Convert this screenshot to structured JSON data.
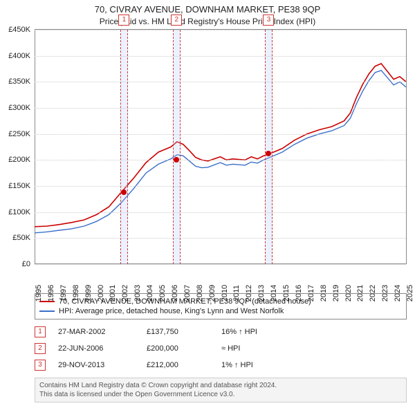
{
  "title": "70, CIVRAY AVENUE, DOWNHAM MARKET, PE38 9QP",
  "subtitle": "Price paid vs. HM Land Registry's House Price Index (HPI)",
  "chart": {
    "type": "line",
    "background_color": "#ffffff",
    "grid_color": "#cccccc",
    "x": {
      "min": 1995,
      "max": 2025,
      "ticks": [
        1995,
        1996,
        1997,
        1998,
        1999,
        2000,
        2001,
        2002,
        2003,
        2004,
        2005,
        2006,
        2007,
        2008,
        2009,
        2010,
        2011,
        2012,
        2013,
        2014,
        2015,
        2016,
        2017,
        2018,
        2019,
        2020,
        2021,
        2022,
        2023,
        2024,
        2025
      ]
    },
    "y": {
      "min": 0,
      "max": 450000,
      "ticks": [
        0,
        50000,
        100000,
        150000,
        200000,
        250000,
        300000,
        350000,
        400000,
        450000
      ],
      "tick_labels": [
        "£0",
        "£50K",
        "£100K",
        "£150K",
        "£200K",
        "£250K",
        "£300K",
        "£350K",
        "£400K",
        "£450K"
      ]
    },
    "series": [
      {
        "name": "price_paid",
        "color": "#cc0000",
        "width": 1.6,
        "points": [
          [
            1995,
            72000
          ],
          [
            1996,
            73000
          ],
          [
            1997,
            76000
          ],
          [
            1998,
            80000
          ],
          [
            1999,
            85000
          ],
          [
            2000,
            95000
          ],
          [
            2001,
            110000
          ],
          [
            2002,
            138000
          ],
          [
            2003,
            165000
          ],
          [
            2004,
            195000
          ],
          [
            2005,
            215000
          ],
          [
            2006,
            225000
          ],
          [
            2006.5,
            235000
          ],
          [
            2007,
            230000
          ],
          [
            2007.5,
            218000
          ],
          [
            2008,
            205000
          ],
          [
            2008.5,
            200000
          ],
          [
            2009,
            198000
          ],
          [
            2010,
            206000
          ],
          [
            2010.5,
            200000
          ],
          [
            2011,
            202000
          ],
          [
            2012,
            200000
          ],
          [
            2012.5,
            206000
          ],
          [
            2013,
            202000
          ],
          [
            2013.5,
            208000
          ],
          [
            2014,
            212000
          ],
          [
            2015,
            222000
          ],
          [
            2016,
            238000
          ],
          [
            2017,
            250000
          ],
          [
            2018,
            258000
          ],
          [
            2019,
            264000
          ],
          [
            2020,
            275000
          ],
          [
            2020.5,
            290000
          ],
          [
            2021,
            320000
          ],
          [
            2021.5,
            345000
          ],
          [
            2022,
            365000
          ],
          [
            2022.5,
            380000
          ],
          [
            2023,
            385000
          ],
          [
            2023.5,
            370000
          ],
          [
            2024,
            355000
          ],
          [
            2024.5,
            360000
          ],
          [
            2025,
            350000
          ]
        ]
      },
      {
        "name": "hpi",
        "color": "#3a6fc9",
        "width": 1.4,
        "points": [
          [
            1995,
            60000
          ],
          [
            1996,
            62000
          ],
          [
            1997,
            65000
          ],
          [
            1998,
            68000
          ],
          [
            1999,
            73000
          ],
          [
            2000,
            82000
          ],
          [
            2001,
            95000
          ],
          [
            2002,
            118000
          ],
          [
            2003,
            145000
          ],
          [
            2004,
            175000
          ],
          [
            2005,
            192000
          ],
          [
            2006,
            202000
          ],
          [
            2006.5,
            210000
          ],
          [
            2007,
            208000
          ],
          [
            2007.5,
            198000
          ],
          [
            2008,
            188000
          ],
          [
            2008.5,
            185000
          ],
          [
            2009,
            186000
          ],
          [
            2010,
            195000
          ],
          [
            2010.5,
            190000
          ],
          [
            2011,
            192000
          ],
          [
            2012,
            190000
          ],
          [
            2012.5,
            196000
          ],
          [
            2013,
            194000
          ],
          [
            2013.5,
            200000
          ],
          [
            2014,
            205000
          ],
          [
            2015,
            215000
          ],
          [
            2016,
            230000
          ],
          [
            2017,
            242000
          ],
          [
            2018,
            250000
          ],
          [
            2019,
            256000
          ],
          [
            2020,
            266000
          ],
          [
            2020.5,
            280000
          ],
          [
            2021,
            308000
          ],
          [
            2021.5,
            332000
          ],
          [
            2022,
            352000
          ],
          [
            2022.5,
            368000
          ],
          [
            2023,
            372000
          ],
          [
            2023.5,
            358000
          ],
          [
            2024,
            344000
          ],
          [
            2024.5,
            350000
          ],
          [
            2025,
            340000
          ]
        ]
      }
    ],
    "sale_markers": [
      {
        "n": "1",
        "x": 2002.23,
        "band_width": 0.6,
        "dot_y": 137750
      },
      {
        "n": "2",
        "x": 2006.47,
        "band_width": 0.6,
        "dot_y": 200000
      },
      {
        "n": "3",
        "x": 2013.91,
        "band_width": 0.6,
        "dot_y": 212000
      }
    ]
  },
  "legend": {
    "items": [
      {
        "color": "#cc0000",
        "label": "70, CIVRAY AVENUE, DOWNHAM MARKET, PE38 9QP (detached house)"
      },
      {
        "color": "#3a6fc9",
        "label": "HPI: Average price, detached house, King's Lynn and West Norfolk"
      }
    ]
  },
  "sales": [
    {
      "n": "1",
      "date": "27-MAR-2002",
      "price": "£137,750",
      "note": "16% ↑ HPI"
    },
    {
      "n": "2",
      "date": "22-JUN-2006",
      "price": "£200,000",
      "note": "≈ HPI"
    },
    {
      "n": "3",
      "date": "29-NOV-2013",
      "price": "£212,000",
      "note": "1% ↑ HPI"
    }
  ],
  "footer": {
    "line1": "Contains HM Land Registry data © Crown copyright and database right 2024.",
    "line2": "This data is licensed under the Open Government Licence v3.0."
  }
}
